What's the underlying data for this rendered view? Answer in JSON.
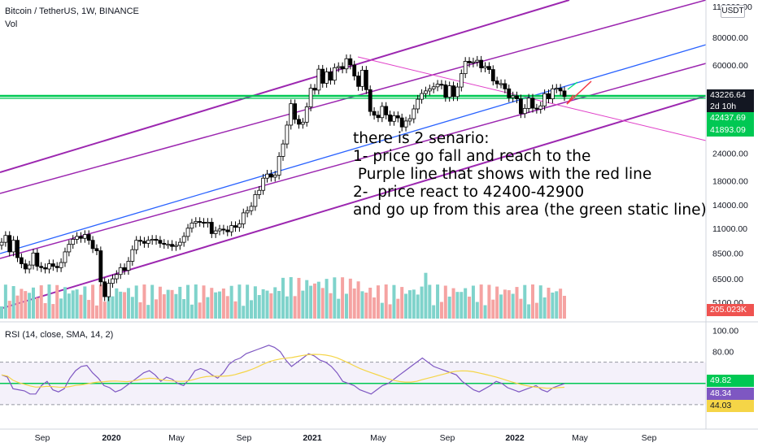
{
  "header": {
    "title": "Bitcoin / TetherUS, 1W, BINANCE",
    "vol_label": "Vol",
    "rsi_label": "RSI (14, close, SMA, 14, 2)",
    "scale_button": "USDT"
  },
  "colors": {
    "up": "#26a69a",
    "down": "#ef5350",
    "channel": "#9c27b0",
    "blue_line": "#2962ff",
    "green_line": "#00c853",
    "red_line": "#f23645",
    "pink_line": "#e040c8",
    "rsi_line": "#7e57c2",
    "rsi_ma": "#f5d547"
  },
  "annotation": {
    "lines": [
      "there is 2 senario:",
      "1- price go fall and reach to the",
      " Purple line that shows with the red line",
      "2-  price react to 42400-42900",
      "and go up from this area (the green static line)"
    ]
  },
  "price_tags": {
    "last": "43226.64",
    "countdown": "2d 10h",
    "level1": "42437.69",
    "level2": "41893.09",
    "volume": "205.023K",
    "rsi": "49.82",
    "rsi_ma": "48.34",
    "rsi_low": "44.03"
  },
  "chart_data": {
    "type": "candlestick",
    "title": "Bitcoin / TetherUS, 1W, BINANCE",
    "y_scale": "log",
    "price_axis_ticks": [
      "110000.00",
      "80000.00",
      "60000.00",
      "43226.64",
      "24000.00",
      "18000.00",
      "14000.00",
      "11000.00",
      "8500.00",
      "6500.00",
      "5100.00"
    ],
    "x_axis_ticks": [
      "Sep",
      "2020",
      "May",
      "Sep",
      "2021",
      "May",
      "Sep",
      "2022",
      "May",
      "Sep"
    ],
    "rsi_axis_ticks": [
      "100.00",
      "80.00"
    ],
    "horizontal_levels": [
      42437.69,
      41893.09
    ],
    "close_series_weekly": [
      9500,
      10200,
      8600,
      9700,
      8100,
      7600,
      7200,
      7500,
      8500,
      7400,
      7300,
      7200,
      7600,
      7400,
      7300,
      7700,
      8600,
      9300,
      9800,
      10100,
      9900,
      10300,
      9700,
      8900,
      8700,
      6300,
      5400,
      6200,
      6500,
      6800,
      7300,
      7100,
      7800,
      8800,
      9700,
      9600,
      9400,
      9700,
      9800,
      9700,
      9400,
      9300,
      9300,
      9100,
      9200,
      9500,
      10100,
      11000,
      11600,
      11800,
      11700,
      11600,
      11700,
      10400,
      10700,
      10900,
      10800,
      10600,
      11300,
      11100,
      11500,
      12900,
      13200,
      13800,
      15600,
      16300,
      18500,
      19300,
      18700,
      19100,
      23200,
      26400,
      32100,
      40100,
      34100,
      32400,
      33100,
      38800,
      47100,
      46200,
      57400,
      49600,
      55800,
      51200,
      58300,
      59000,
      57600,
      64000,
      60000,
      53500,
      48000,
      56800,
      46400,
      37000,
      35600,
      34700,
      39000,
      35700,
      33400,
      35400,
      34600,
      31500,
      33500,
      34300,
      38000,
      42000,
      44600,
      45800,
      46800,
      47800,
      49100,
      48800,
      42900,
      48300,
      43200,
      47700,
      54800,
      62300,
      61300,
      61900,
      63000,
      58200,
      59100,
      57200,
      50800,
      49300,
      49400,
      46800,
      42700,
      43500,
      42200,
      36200,
      38200,
      42500,
      38300,
      37900,
      39200,
      44500,
      42200,
      46800,
      47100,
      45800,
      43226.64
    ],
    "rsi_values": [
      58,
      56,
      45,
      44,
      43,
      40,
      40,
      48,
      52,
      44,
      42,
      45,
      55,
      62,
      66,
      67,
      60,
      55,
      48,
      46,
      42,
      44,
      48,
      52,
      56,
      60,
      62,
      58,
      52,
      56,
      54,
      50,
      48,
      54,
      62,
      64,
      62,
      58,
      55,
      60,
      68,
      72,
      74,
      78,
      80,
      82,
      84,
      86,
      84,
      80,
      72,
      66,
      70,
      74,
      78,
      76,
      72,
      70,
      66,
      60,
      52,
      50,
      48,
      44,
      42,
      40,
      44,
      48,
      50,
      54,
      58,
      62,
      66,
      70,
      74,
      70,
      66,
      64,
      62,
      60,
      58,
      52,
      48,
      44,
      42,
      45,
      48,
      52,
      50,
      46,
      44,
      42,
      44,
      46,
      48,
      44,
      42,
      46,
      48,
      49.82
    ],
    "rsi_ma_value": 48.34
  }
}
